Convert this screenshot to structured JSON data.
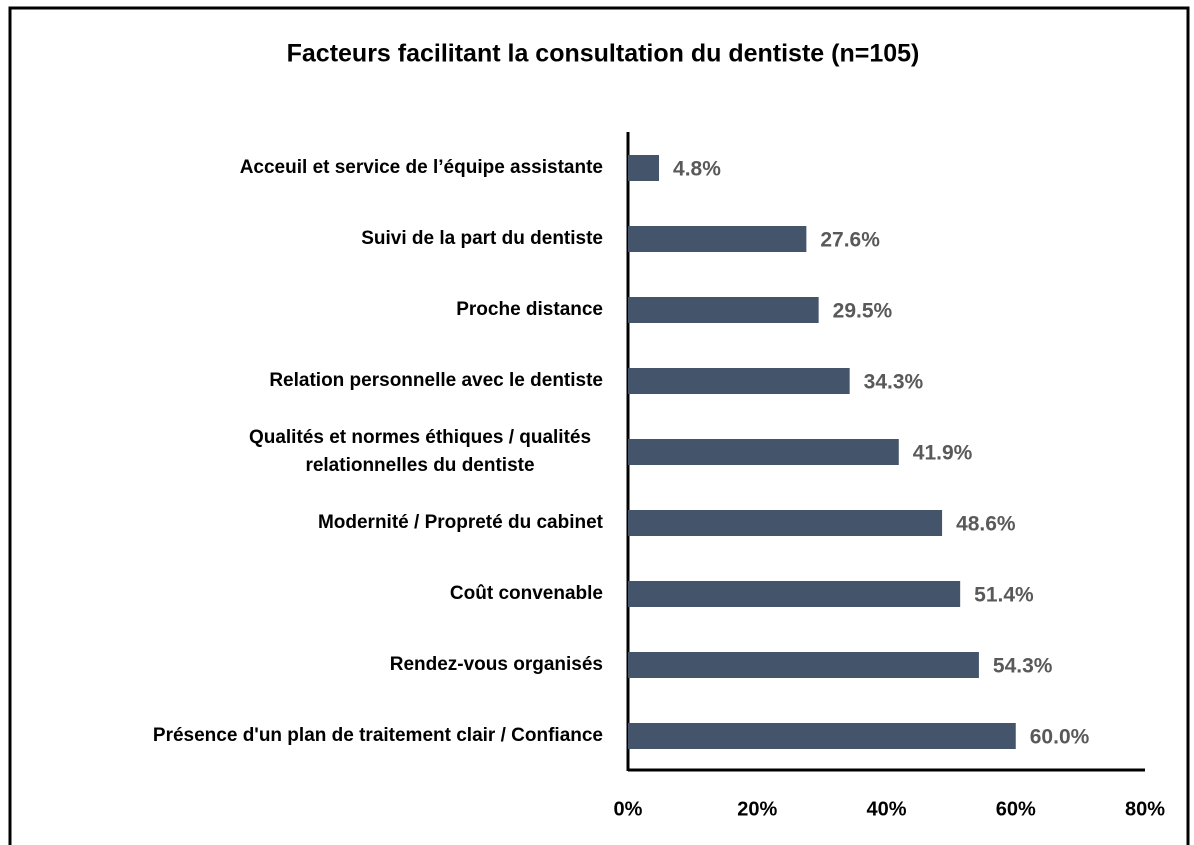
{
  "chart_data": {
    "type": "bar",
    "orientation": "horizontal",
    "title": "Facteurs facilitant la consultation du dentiste (n=105)",
    "categories": [
      "Acceuil et service de l’équipe assistante",
      "Suivi de la part du dentiste",
      "Proche distance",
      "Relation personnelle avec le dentiste",
      "Qualités et normes éthiques  / qualités\nrelationnelles du dentiste",
      "Modernité / Propreté du cabinet",
      "Coût convenable",
      "Rendez-vous organisés",
      "Présence d'un plan de traitement clair / Confiance"
    ],
    "values": [
      4.8,
      27.6,
      29.5,
      34.3,
      41.9,
      48.6,
      51.4,
      54.3,
      60.0
    ],
    "value_labels": [
      "4.8%",
      "27.6%",
      "29.5%",
      "34.3%",
      "41.9%",
      "48.6%",
      "51.4%",
      "54.3%",
      "60.0%"
    ],
    "color": "#44546a",
    "xlim": [
      0,
      80
    ],
    "xticks": [
      {
        "value": 0,
        "label": "0%"
      },
      {
        "value": 20,
        "label": "20%"
      },
      {
        "value": 40,
        "label": "40%"
      },
      {
        "value": 60,
        "label": "60%"
      },
      {
        "value": 80,
        "label": "80%"
      }
    ],
    "grid": false
  }
}
